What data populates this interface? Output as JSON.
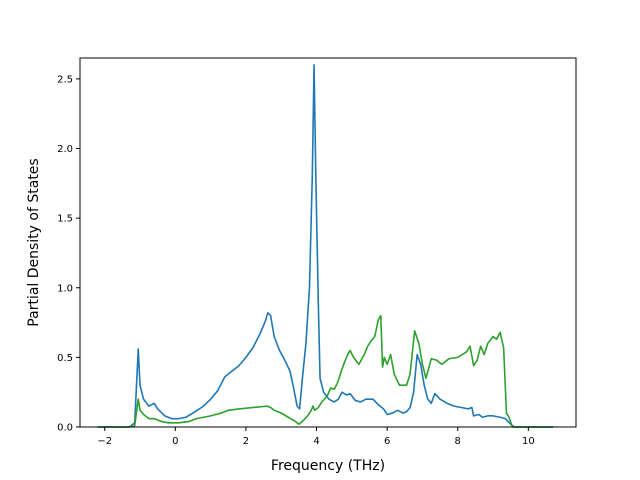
{
  "chart_data": {
    "type": "line",
    "title": "",
    "xlabel": "Frequency (THz)",
    "ylabel": "Partial Density of States",
    "xlim": [
      -2.7,
      11.35
    ],
    "ylim": [
      0,
      2.65
    ],
    "grid": false,
    "xticks": [
      -2,
      0,
      2,
      4,
      6,
      8,
      10
    ],
    "xtick_labels": [
      "−2",
      "0",
      "2",
      "4",
      "6",
      "8",
      "10"
    ],
    "yticks": [
      0.0,
      0.5,
      1.0,
      1.5,
      2.0,
      2.5
    ],
    "ytick_labels": [
      "0.0",
      "0.5",
      "1.0",
      "1.5",
      "2.0",
      "2.5"
    ],
    "series": [
      {
        "color": "#1f77b4",
        "points": [
          [
            -2.2,
            0.0
          ],
          [
            -1.3,
            0.0
          ],
          [
            -1.15,
            0.03
          ],
          [
            -1.05,
            0.56
          ],
          [
            -1.0,
            0.3
          ],
          [
            -0.9,
            0.2
          ],
          [
            -0.75,
            0.15
          ],
          [
            -0.6,
            0.17
          ],
          [
            -0.5,
            0.13
          ],
          [
            -0.3,
            0.08
          ],
          [
            -0.1,
            0.06
          ],
          [
            0.1,
            0.06
          ],
          [
            0.3,
            0.07
          ],
          [
            0.5,
            0.1
          ],
          [
            0.8,
            0.15
          ],
          [
            1.0,
            0.2
          ],
          [
            1.2,
            0.26
          ],
          [
            1.4,
            0.36
          ],
          [
            1.6,
            0.4
          ],
          [
            1.8,
            0.44
          ],
          [
            2.0,
            0.5
          ],
          [
            2.2,
            0.57
          ],
          [
            2.4,
            0.67
          ],
          [
            2.55,
            0.76
          ],
          [
            2.62,
            0.82
          ],
          [
            2.7,
            0.8
          ],
          [
            2.8,
            0.65
          ],
          [
            2.95,
            0.55
          ],
          [
            3.1,
            0.48
          ],
          [
            3.25,
            0.4
          ],
          [
            3.35,
            0.28
          ],
          [
            3.45,
            0.15
          ],
          [
            3.52,
            0.13
          ],
          [
            3.6,
            0.35
          ],
          [
            3.7,
            0.6
          ],
          [
            3.8,
            1.0
          ],
          [
            3.88,
            1.8
          ],
          [
            3.93,
            2.6
          ],
          [
            3.98,
            1.8
          ],
          [
            4.05,
            0.9
          ],
          [
            4.1,
            0.35
          ],
          [
            4.2,
            0.25
          ],
          [
            4.35,
            0.2
          ],
          [
            4.5,
            0.18
          ],
          [
            4.62,
            0.2
          ],
          [
            4.72,
            0.25
          ],
          [
            4.85,
            0.23
          ],
          [
            4.95,
            0.24
          ],
          [
            5.1,
            0.19
          ],
          [
            5.25,
            0.18
          ],
          [
            5.4,
            0.2
          ],
          [
            5.6,
            0.2
          ],
          [
            5.75,
            0.16
          ],
          [
            5.9,
            0.13
          ],
          [
            6.0,
            0.09
          ],
          [
            6.15,
            0.1
          ],
          [
            6.3,
            0.12
          ],
          [
            6.45,
            0.1
          ],
          [
            6.55,
            0.11
          ],
          [
            6.65,
            0.14
          ],
          [
            6.75,
            0.25
          ],
          [
            6.85,
            0.52
          ],
          [
            6.95,
            0.45
          ],
          [
            7.05,
            0.3
          ],
          [
            7.15,
            0.2
          ],
          [
            7.25,
            0.17
          ],
          [
            7.35,
            0.24
          ],
          [
            7.5,
            0.2
          ],
          [
            7.7,
            0.17
          ],
          [
            7.9,
            0.15
          ],
          [
            8.1,
            0.14
          ],
          [
            8.3,
            0.13
          ],
          [
            8.4,
            0.14
          ],
          [
            8.45,
            0.08
          ],
          [
            8.6,
            0.09
          ],
          [
            8.7,
            0.07
          ],
          [
            8.85,
            0.08
          ],
          [
            9.0,
            0.08
          ],
          [
            9.2,
            0.07
          ],
          [
            9.35,
            0.06
          ],
          [
            9.5,
            0.02
          ],
          [
            9.6,
            0.0
          ],
          [
            10.7,
            0.0
          ]
        ]
      },
      {
        "color": "#2ca02c",
        "points": [
          [
            -2.2,
            0.0
          ],
          [
            -1.3,
            0.0
          ],
          [
            -1.15,
            0.01
          ],
          [
            -1.05,
            0.2
          ],
          [
            -1.0,
            0.12
          ],
          [
            -0.9,
            0.09
          ],
          [
            -0.75,
            0.06
          ],
          [
            -0.6,
            0.06
          ],
          [
            -0.4,
            0.04
          ],
          [
            -0.2,
            0.03
          ],
          [
            0.1,
            0.03
          ],
          [
            0.4,
            0.04
          ],
          [
            0.6,
            0.06
          ],
          [
            1.0,
            0.08
          ],
          [
            1.3,
            0.1
          ],
          [
            1.5,
            0.12
          ],
          [
            1.8,
            0.13
          ],
          [
            2.2,
            0.14
          ],
          [
            2.6,
            0.15
          ],
          [
            2.7,
            0.14
          ],
          [
            2.8,
            0.12
          ],
          [
            3.0,
            0.1
          ],
          [
            3.2,
            0.07
          ],
          [
            3.4,
            0.04
          ],
          [
            3.5,
            0.02
          ],
          [
            3.6,
            0.04
          ],
          [
            3.75,
            0.08
          ],
          [
            3.85,
            0.12
          ],
          [
            3.9,
            0.15
          ],
          [
            3.95,
            0.12
          ],
          [
            4.05,
            0.14
          ],
          [
            4.15,
            0.18
          ],
          [
            4.3,
            0.22
          ],
          [
            4.4,
            0.28
          ],
          [
            4.5,
            0.27
          ],
          [
            4.6,
            0.32
          ],
          [
            4.7,
            0.4
          ],
          [
            4.8,
            0.47
          ],
          [
            4.9,
            0.53
          ],
          [
            4.95,
            0.55
          ],
          [
            5.05,
            0.5
          ],
          [
            5.2,
            0.45
          ],
          [
            5.35,
            0.52
          ],
          [
            5.45,
            0.58
          ],
          [
            5.55,
            0.62
          ],
          [
            5.65,
            0.65
          ],
          [
            5.75,
            0.77
          ],
          [
            5.82,
            0.8
          ],
          [
            5.87,
            0.43
          ],
          [
            5.92,
            0.5
          ],
          [
            6.0,
            0.45
          ],
          [
            6.1,
            0.52
          ],
          [
            6.2,
            0.38
          ],
          [
            6.35,
            0.3
          ],
          [
            6.55,
            0.3
          ],
          [
            6.65,
            0.38
          ],
          [
            6.72,
            0.55
          ],
          [
            6.78,
            0.69
          ],
          [
            6.9,
            0.6
          ],
          [
            7.0,
            0.45
          ],
          [
            7.1,
            0.35
          ],
          [
            7.25,
            0.49
          ],
          [
            7.4,
            0.48
          ],
          [
            7.55,
            0.45
          ],
          [
            7.75,
            0.49
          ],
          [
            8.0,
            0.5
          ],
          [
            8.25,
            0.54
          ],
          [
            8.35,
            0.58
          ],
          [
            8.45,
            0.44
          ],
          [
            8.55,
            0.48
          ],
          [
            8.65,
            0.58
          ],
          [
            8.75,
            0.52
          ],
          [
            8.85,
            0.6
          ],
          [
            9.0,
            0.65
          ],
          [
            9.1,
            0.63
          ],
          [
            9.2,
            0.68
          ],
          [
            9.3,
            0.57
          ],
          [
            9.38,
            0.1
          ],
          [
            9.45,
            0.07
          ],
          [
            9.55,
            0.0
          ],
          [
            10.7,
            0.0
          ]
        ]
      }
    ]
  }
}
